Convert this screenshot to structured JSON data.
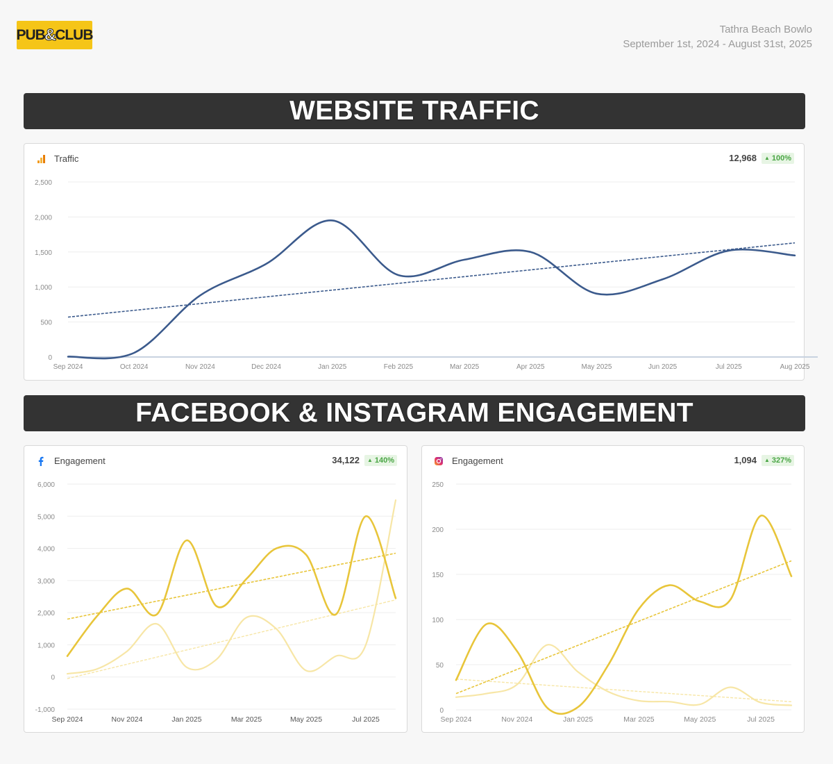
{
  "header": {
    "logo_left": "PUB",
    "logo_amp": "&",
    "logo_right": "CLUB",
    "venue": "Tathra Beach Bowlo",
    "date_range": "September 1st, 2024 - August 31st, 2025"
  },
  "sections": {
    "website": "WEBSITE TRAFFIC",
    "social": "FACEBOOK & INSTAGRAM ENGAGEMENT"
  },
  "colors": {
    "traffic_line": "#3b5a8c",
    "fb_primary": "#e8c53a",
    "fb_secondary": "#f7e6a6",
    "grid": "#ededed",
    "axis_text": "#8a8a8a"
  },
  "cards": {
    "traffic": {
      "title": "Traffic",
      "icon": "analytics-bar-icon",
      "total": "12,968",
      "change": "100%"
    },
    "facebook": {
      "title": "Engagement",
      "icon": "facebook-icon",
      "total": "34,122",
      "change": "140%"
    },
    "instagram": {
      "title": "Engagement",
      "icon": "instagram-icon",
      "total": "1,094",
      "change": "327%"
    }
  },
  "chart_data": [
    {
      "type": "line",
      "id": "traffic",
      "x": [
        "Sep 2024",
        "Oct 2024",
        "Nov 2024",
        "Dec 2024",
        "Jan 2025",
        "Feb 2025",
        "Mar 2025",
        "Apr 2025",
        "May 2025",
        "Jun 2025",
        "Jul 2025",
        "Aug 2025"
      ],
      "xticks": [
        "Sep 2024",
        "Oct 2024",
        "Nov 2024",
        "Dec 2024",
        "Jan 2025",
        "Feb 2025",
        "Mar 2025",
        "Apr 2025",
        "May 2025",
        "Jun 2025",
        "Jul 2025",
        "Aug 2025"
      ],
      "series": [
        {
          "values": [
            5,
            60,
            880,
            1330,
            1950,
            1170,
            1390,
            1500,
            905,
            1110,
            1520,
            1450
          ],
          "trend": [
            570,
            1630
          ]
        }
      ],
      "yticks": [
        "0",
        "500",
        "1,000",
        "1,500",
        "2,000",
        "2,500"
      ],
      "ylim": [
        0,
        2500
      ],
      "grid": true
    },
    {
      "type": "line",
      "id": "facebook",
      "x": [
        "Sep 2024",
        "Oct 2024",
        "Nov 2024",
        "Dec 2024",
        "Jan 2025",
        "Feb 2025",
        "Mar 2025",
        "Apr 2025",
        "May 2025",
        "Jun 2025",
        "Jul 2025",
        "Aug 2025"
      ],
      "xticks": [
        "Sep 2024",
        "Nov 2024",
        "Jan 2025",
        "Mar 2025",
        "May 2025",
        "Jul 2025"
      ],
      "series": [
        {
          "values": [
            650,
            1900,
            2750,
            1950,
            4250,
            2200,
            3050,
            4000,
            3800,
            1950,
            5000,
            2450
          ],
          "trend": [
            1800,
            3850
          ]
        },
        {
          "values": [
            100,
            250,
            800,
            1650,
            300,
            550,
            1850,
            1500,
            200,
            650,
            1000,
            5500
          ],
          "trend": [
            -50,
            2400
          ]
        }
      ],
      "yticks": [
        "-1,000",
        "0",
        "1,000",
        "2,000",
        "3,000",
        "4,000",
        "5,000",
        "6,000"
      ],
      "ylim": [
        -1000,
        6000
      ],
      "grid": true
    },
    {
      "type": "line",
      "id": "instagram",
      "x": [
        "Sep 2024",
        "Oct 2024",
        "Nov 2024",
        "Dec 2024",
        "Jan 2025",
        "Feb 2025",
        "Mar 2025",
        "Apr 2025",
        "May 2025",
        "Jun 2025",
        "Jul 2025",
        "Aug 2025"
      ],
      "xticks": [
        "Sep 2024",
        "Nov 2024",
        "Jan 2025",
        "Mar 2025",
        "May 2025",
        "Jul 2025"
      ],
      "series": [
        {
          "values": [
            33,
            95,
            65,
            2,
            3,
            50,
            112,
            138,
            120,
            122,
            215,
            148
          ],
          "trend": [
            18,
            165
          ]
        },
        {
          "values": [
            14,
            18,
            28,
            72,
            42,
            20,
            10,
            9,
            6,
            25,
            8,
            5
          ],
          "trend": [
            34,
            9
          ]
        }
      ],
      "yticks": [
        "0",
        "50",
        "100",
        "150",
        "200",
        "250"
      ],
      "ylim": [
        0,
        250
      ],
      "grid": true
    }
  ]
}
